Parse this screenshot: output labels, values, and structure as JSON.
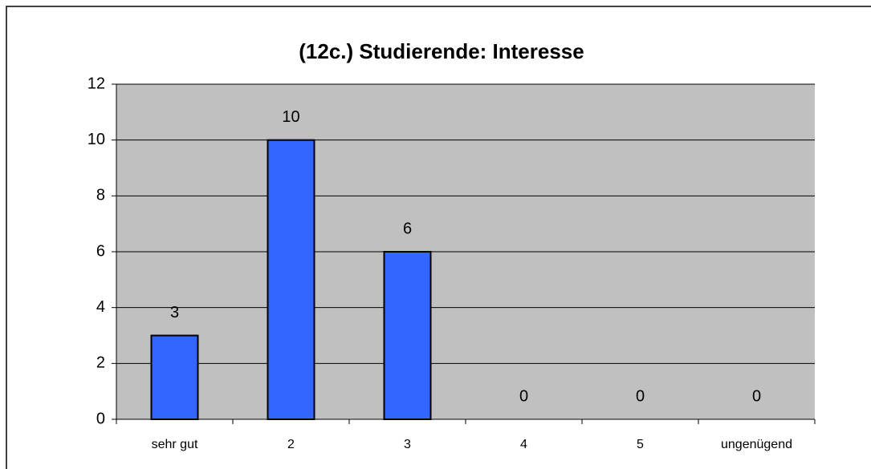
{
  "chart_data": {
    "type": "bar",
    "title": "(12c.) Studierende: Interesse",
    "categories": [
      "sehr gut",
      "2",
      "3",
      "4",
      "5",
      "ungenügend"
    ],
    "values": [
      3,
      10,
      6,
      0,
      0,
      0
    ],
    "color": "#3366ff",
    "ylim": [
      0,
      12
    ],
    "yticks": [
      0,
      2,
      4,
      6,
      8,
      10,
      12
    ],
    "grid": true
  }
}
